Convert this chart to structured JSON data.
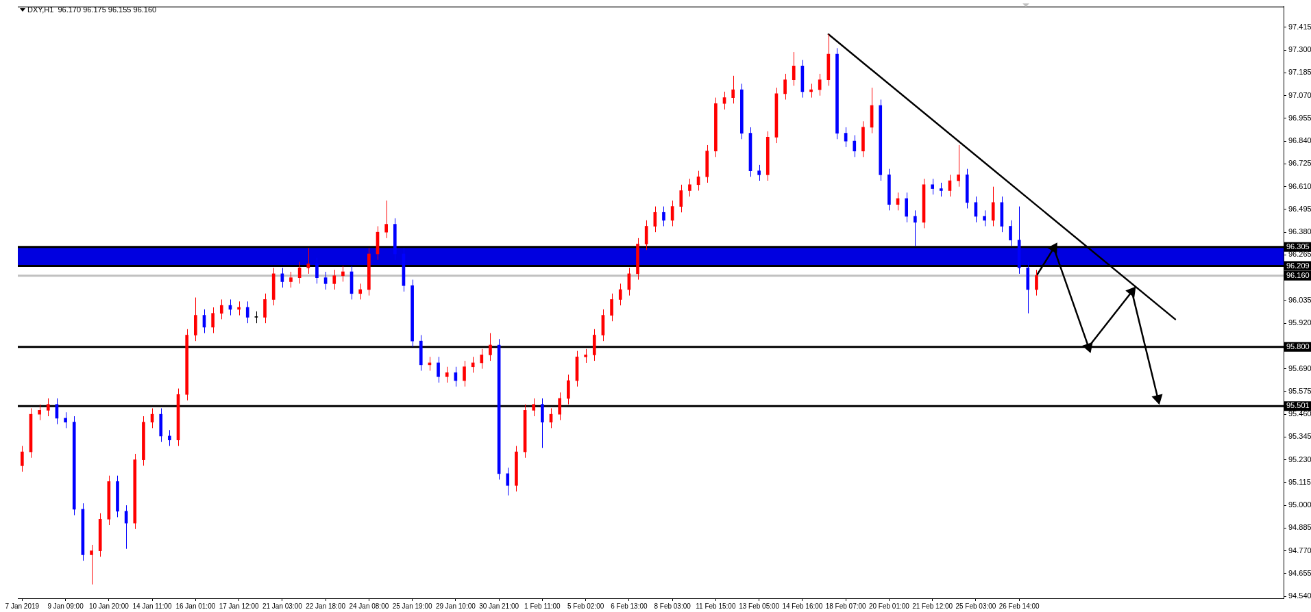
{
  "chart_data": {
    "type": "candlestick",
    "title": "DXY,H1  96.170 96.175 96.155 96.160",
    "categories": [
      "7 Jan 2019",
      null,
      null,
      null,
      null,
      "9 Jan 09:00",
      null,
      null,
      null,
      null,
      "10 Jan 20:00",
      null,
      null,
      null,
      null,
      "14 Jan 11:00",
      null,
      null,
      null,
      null,
      "16 Jan 01:00",
      null,
      null,
      null,
      null,
      "17 Jan 12:00",
      null,
      null,
      null,
      null,
      "21 Jan 03:00",
      null,
      null,
      null,
      null,
      "22 Jan 18:00",
      null,
      null,
      null,
      null,
      "24 Jan 08:00",
      null,
      null,
      null,
      null,
      "25 Jan 19:00",
      null,
      null,
      null,
      null,
      "29 Jan 10:00",
      null,
      null,
      null,
      null,
      "30 Jan 21:00",
      null,
      null,
      null,
      null,
      "1 Feb 11:00",
      null,
      null,
      null,
      null,
      "5 Feb 02:00",
      null,
      null,
      null,
      null,
      "6 Feb 13:00",
      null,
      null,
      null,
      null,
      "8 Feb 03:00",
      null,
      null,
      null,
      null,
      "11 Feb 15:00",
      null,
      null,
      null,
      null,
      "13 Feb 05:00",
      null,
      null,
      null,
      null,
      "14 Feb 16:00",
      null,
      null,
      null,
      null,
      "18 Feb 07:00",
      null,
      null,
      null,
      null,
      "20 Feb 01:00",
      null,
      null,
      null,
      null,
      "21 Feb 12:00",
      null,
      null,
      null,
      null,
      "25 Feb 03:00",
      null,
      null,
      null,
      null,
      "26 Feb 14:00",
      null,
      null,
      null,
      null,
      null,
      null,
      null,
      null,
      null,
      null,
      null,
      null,
      null,
      null,
      null,
      null,
      null,
      null,
      null,
      null,
      null,
      null,
      null,
      null,
      null,
      null,
      null,
      null,
      null,
      null
    ],
    "ohlc": [
      [
        95.2,
        95.3,
        95.17,
        95.27
      ],
      [
        95.27,
        95.49,
        95.24,
        95.46
      ],
      [
        95.46,
        95.51,
        95.43,
        95.48
      ],
      [
        95.48,
        95.54,
        95.45,
        95.51
      ],
      [
        95.51,
        95.54,
        95.41,
        95.44
      ],
      [
        95.44,
        95.47,
        95.39,
        95.42
      ],
      [
        95.42,
        95.45,
        94.95,
        94.98
      ],
      [
        94.98,
        95.01,
        94.72,
        94.75
      ],
      [
        94.75,
        94.8,
        94.6,
        94.77
      ],
      [
        94.77,
        94.96,
        94.74,
        94.93
      ],
      [
        94.93,
        95.15,
        94.9,
        95.12
      ],
      [
        95.12,
        95.15,
        94.94,
        94.97
      ],
      [
        94.97,
        95.0,
        94.78,
        94.91
      ],
      [
        94.91,
        95.26,
        94.88,
        95.23
      ],
      [
        95.23,
        95.45,
        95.2,
        95.42
      ],
      [
        95.42,
        95.49,
        95.39,
        95.46
      ],
      [
        95.46,
        95.49,
        95.32,
        95.35
      ],
      [
        95.35,
        95.38,
        95.3,
        95.33
      ],
      [
        95.33,
        95.59,
        95.3,
        95.56
      ],
      [
        95.56,
        95.89,
        95.53,
        95.86
      ],
      [
        95.86,
        96.05,
        95.83,
        95.96
      ],
      [
        95.96,
        95.99,
        95.87,
        95.9
      ],
      [
        95.9,
        96.0,
        95.87,
        95.97
      ],
      [
        95.97,
        96.04,
        95.94,
        96.01
      ],
      [
        96.01,
        96.04,
        95.96,
        95.99
      ],
      [
        95.99,
        96.03,
        95.96,
        96.0
      ],
      [
        96.0,
        96.03,
        95.92,
        95.95
      ],
      [
        95.95,
        95.98,
        95.92,
        95.95
      ],
      [
        95.95,
        96.07,
        95.92,
        96.04
      ],
      [
        96.04,
        96.2,
        96.01,
        96.17
      ],
      [
        96.17,
        96.2,
        96.1,
        96.13
      ],
      [
        96.13,
        96.18,
        96.1,
        96.15
      ],
      [
        96.15,
        96.23,
        96.12,
        96.2
      ],
      [
        96.2,
        96.3,
        96.17,
        96.22
      ],
      [
        96.22,
        96.25,
        96.12,
        96.15
      ],
      [
        96.15,
        96.18,
        96.09,
        96.12
      ],
      [
        96.12,
        96.19,
        96.09,
        96.16
      ],
      [
        96.16,
        96.21,
        96.13,
        96.18
      ],
      [
        96.18,
        96.21,
        96.04,
        96.07
      ],
      [
        96.07,
        96.12,
        96.04,
        96.09
      ],
      [
        96.09,
        96.3,
        96.06,
        96.27
      ],
      [
        96.27,
        96.41,
        96.24,
        96.38
      ],
      [
        96.38,
        96.54,
        96.35,
        96.42
      ],
      [
        96.42,
        96.45,
        96.24,
        96.27
      ],
      [
        96.27,
        96.3,
        96.08,
        96.11
      ],
      [
        96.11,
        96.14,
        95.8,
        95.83
      ],
      [
        95.83,
        95.86,
        95.68,
        95.71
      ],
      [
        95.71,
        95.75,
        95.68,
        95.72
      ],
      [
        95.72,
        95.75,
        95.62,
        95.65
      ],
      [
        95.65,
        95.7,
        95.62,
        95.67
      ],
      [
        95.67,
        95.7,
        95.6,
        95.63
      ],
      [
        95.63,
        95.73,
        95.6,
        95.7
      ],
      [
        95.7,
        95.75,
        95.67,
        95.72
      ],
      [
        95.72,
        95.79,
        95.69,
        95.76
      ],
      [
        95.76,
        95.87,
        95.73,
        95.81
      ],
      [
        95.81,
        95.84,
        95.13,
        95.16
      ],
      [
        95.16,
        95.19,
        95.05,
        95.1
      ],
      [
        95.1,
        95.3,
        95.07,
        95.27
      ],
      [
        95.27,
        95.51,
        95.24,
        95.48
      ],
      [
        95.48,
        95.54,
        95.45,
        95.51
      ],
      [
        95.51,
        95.54,
        95.29,
        95.42
      ],
      [
        95.42,
        95.49,
        95.39,
        95.46
      ],
      [
        95.46,
        95.57,
        95.43,
        95.54
      ],
      [
        95.54,
        95.66,
        95.51,
        95.63
      ],
      [
        95.63,
        95.78,
        95.6,
        95.75
      ],
      [
        95.75,
        95.79,
        95.72,
        95.76
      ],
      [
        95.76,
        95.89,
        95.73,
        95.86
      ],
      [
        95.86,
        95.99,
        95.83,
        95.96
      ],
      [
        95.96,
        96.07,
        95.93,
        96.04
      ],
      [
        96.04,
        96.12,
        96.01,
        96.09
      ],
      [
        96.09,
        96.2,
        96.06,
        96.17
      ],
      [
        96.17,
        96.35,
        96.14,
        96.32
      ],
      [
        96.32,
        96.44,
        96.29,
        96.41
      ],
      [
        96.41,
        96.51,
        96.38,
        96.48
      ],
      [
        96.48,
        96.51,
        96.41,
        96.44
      ],
      [
        96.44,
        96.54,
        96.41,
        96.51
      ],
      [
        96.51,
        96.62,
        96.48,
        96.59
      ],
      [
        96.59,
        96.65,
        96.56,
        96.62
      ],
      [
        96.62,
        96.69,
        96.59,
        96.66
      ],
      [
        96.66,
        96.82,
        96.63,
        96.79
      ],
      [
        96.79,
        97.06,
        96.76,
        97.03
      ],
      [
        97.03,
        97.09,
        97.0,
        97.06
      ],
      [
        97.06,
        97.17,
        97.03,
        97.1
      ],
      [
        97.1,
        97.13,
        96.85,
        96.88
      ],
      [
        96.88,
        96.91,
        96.66,
        96.69
      ],
      [
        96.69,
        96.72,
        96.64,
        96.67
      ],
      [
        96.67,
        96.89,
        96.64,
        96.86
      ],
      [
        96.86,
        97.11,
        96.83,
        97.08
      ],
      [
        97.08,
        97.18,
        97.05,
        97.15
      ],
      [
        97.15,
        97.29,
        97.12,
        97.22
      ],
      [
        97.22,
        97.25,
        97.06,
        97.09
      ],
      [
        97.09,
        97.13,
        97.06,
        97.1
      ],
      [
        97.1,
        97.18,
        97.07,
        97.15
      ],
      [
        97.15,
        97.38,
        97.12,
        97.28
      ],
      [
        97.28,
        97.31,
        96.85,
        96.88
      ],
      [
        96.88,
        96.91,
        96.81,
        96.84
      ],
      [
        96.84,
        96.87,
        96.76,
        96.79
      ],
      [
        96.79,
        96.94,
        96.76,
        96.91
      ],
      [
        96.91,
        97.11,
        96.88,
        97.02
      ],
      [
        97.02,
        97.05,
        96.64,
        96.67
      ],
      [
        96.67,
        96.7,
        96.49,
        96.52
      ],
      [
        96.52,
        96.58,
        96.49,
        96.55
      ],
      [
        96.55,
        96.58,
        96.43,
        96.46
      ],
      [
        96.46,
        96.49,
        96.31,
        96.43
      ],
      [
        96.43,
        96.65,
        96.4,
        96.62
      ],
      [
        96.62,
        96.65,
        96.57,
        96.6
      ],
      [
        96.6,
        96.63,
        96.56,
        96.59
      ],
      [
        96.59,
        96.67,
        96.56,
        96.64
      ],
      [
        96.64,
        96.82,
        96.61,
        96.67
      ],
      [
        96.67,
        96.7,
        96.5,
        96.53
      ],
      [
        96.53,
        96.56,
        96.43,
        96.46
      ],
      [
        96.46,
        96.49,
        96.41,
        96.44
      ],
      [
        96.44,
        96.61,
        96.41,
        96.53
      ],
      [
        96.53,
        96.56,
        96.38,
        96.41
      ],
      [
        96.41,
        96.44,
        96.31,
        96.34
      ],
      [
        96.34,
        96.51,
        96.17,
        96.2
      ],
      [
        96.2,
        96.23,
        95.97,
        96.09
      ],
      [
        96.09,
        96.19,
        96.06,
        96.16
      ],
      null,
      null,
      null,
      null,
      null,
      null,
      null,
      null,
      null,
      null,
      null,
      null,
      null,
      null,
      null,
      null,
      null,
      null,
      null,
      null,
      null,
      null,
      null,
      null,
      null,
      null,
      null,
      null
    ],
    "colors": [
      "#ff0000",
      "#ff0000",
      "#ff0000",
      "#ff0000",
      "#0000ff",
      "#0000ff",
      "#0000ff",
      "#0000ff",
      "#ff0000",
      "#ff0000",
      "#ff0000",
      "#0000ff",
      "#0000ff",
      "#ff0000",
      "#ff0000",
      "#ff0000",
      "#0000ff",
      "#0000ff",
      "#ff0000",
      "#ff0000",
      "#ff0000",
      "#0000ff",
      "#ff0000",
      "#ff0000",
      "#0000ff",
      "#ff0000",
      "#0000ff",
      "#000000",
      "#ff0000",
      "#ff0000",
      "#0000ff",
      "#ff0000",
      "#ff0000",
      "#ff0000",
      "#0000ff",
      "#0000ff",
      "#ff0000",
      "#ff0000",
      "#0000ff",
      "#ff0000",
      "#ff0000",
      "#ff0000",
      "#ff0000",
      "#0000ff",
      "#0000ff",
      "#0000ff",
      "#0000ff",
      "#ff0000",
      "#0000ff",
      "#ff0000",
      "#0000ff",
      "#ff0000",
      "#ff0000",
      "#ff0000",
      "#ff0000",
      "#0000ff",
      "#0000ff",
      "#ff0000",
      "#ff0000",
      "#ff0000",
      "#0000ff",
      "#ff0000",
      "#ff0000",
      "#ff0000",
      "#ff0000",
      "#ff0000",
      "#ff0000",
      "#ff0000",
      "#ff0000",
      "#ff0000",
      "#ff0000",
      "#ff0000",
      "#ff0000",
      "#ff0000",
      "#0000ff",
      "#ff0000",
      "#ff0000",
      "#ff0000",
      "#ff0000",
      "#ff0000",
      "#ff0000",
      "#ff0000",
      "#ff0000",
      "#0000ff",
      "#0000ff",
      "#0000ff",
      "#ff0000",
      "#ff0000",
      "#ff0000",
      "#ff0000",
      "#0000ff",
      "#ff0000",
      "#ff0000",
      "#ff0000",
      "#0000ff",
      "#0000ff",
      "#0000ff",
      "#ff0000",
      "#ff0000",
      "#0000ff",
      "#0000ff",
      "#ff0000",
      "#0000ff",
      "#0000ff",
      "#ff0000",
      "#0000ff",
      "#0000ff",
      "#ff0000",
      "#ff0000",
      "#0000ff",
      "#0000ff",
      "#0000ff",
      "#ff0000",
      "#0000ff",
      "#0000ff",
      "#0000ff",
      "#0000ff",
      "#ff0000",
      null,
      null,
      null,
      null,
      null,
      null,
      null,
      null,
      null,
      null,
      null,
      null,
      null,
      null,
      null,
      null,
      null,
      null,
      null,
      null,
      null,
      null,
      null,
      null,
      null,
      null,
      null,
      null
    ],
    "series": [
      {
        "type": "line",
        "color": "#000000",
        "values": [
          null,
          null,
          null,
          null,
          null,
          null,
          null,
          null,
          null,
          null,
          null,
          null,
          null,
          null,
          null,
          null,
          null,
          null,
          null,
          null,
          null,
          null,
          null,
          null,
          null,
          null,
          null,
          null,
          null,
          null,
          null,
          null,
          null,
          null,
          null,
          null,
          null,
          null,
          null,
          null,
          null,
          null,
          null,
          null,
          null,
          null,
          null,
          null,
          null,
          null,
          null,
          null,
          null,
          null,
          null,
          null,
          null,
          null,
          null,
          null,
          null,
          null,
          null,
          null,
          null,
          null,
          null,
          null,
          null,
          null,
          null,
          null,
          null,
          null,
          null,
          null,
          null,
          null,
          null,
          null,
          null,
          null,
          null,
          null,
          null,
          null,
          null,
          null,
          null,
          null,
          null,
          null,
          null,
          97.38,
          null,
          null,
          null,
          null,
          null,
          null,
          null,
          null,
          null,
          null,
          null,
          null,
          null,
          null,
          null,
          null,
          null,
          null,
          null,
          null,
          null,
          null,
          null,
          null,
          null,
          null,
          null,
          null,
          null,
          null,
          null,
          null,
          null,
          null,
          null,
          null,
          null,
          null,
          null,
          95.94,
          null,
          null,
          null,
          null,
          null,
          null,
          null,
          null,
          null,
          null,
          null,
          null
        ]
      },
      {
        "type": "line",
        "color": "#000000",
        "marker": "triangle",
        "values": [
          null,
          null,
          null,
          null,
          null,
          null,
          null,
          null,
          null,
          null,
          null,
          null,
          null,
          null,
          null,
          null,
          null,
          null,
          null,
          null,
          null,
          null,
          null,
          null,
          null,
          null,
          null,
          null,
          null,
          null,
          null,
          null,
          null,
          null,
          null,
          null,
          null,
          null,
          null,
          null,
          null,
          null,
          null,
          null,
          null,
          null,
          null,
          null,
          null,
          null,
          null,
          null,
          null,
          null,
          null,
          null,
          null,
          null,
          null,
          null,
          null,
          null,
          null,
          null,
          null,
          null,
          null,
          null,
          null,
          null,
          null,
          null,
          null,
          null,
          null,
          null,
          null,
          null,
          null,
          null,
          null,
          null,
          null,
          null,
          null,
          null,
          null,
          null,
          null,
          null,
          null,
          null,
          null,
          null,
          null,
          null,
          null,
          null,
          null,
          null,
          null,
          null,
          null,
          null,
          null,
          null,
          null,
          null,
          null,
          null,
          null,
          null,
          null,
          null,
          null,
          null,
          null,
          96.16,
          null,
          96.3,
          null,
          null,
          null,
          95.8,
          null,
          null,
          null,
          null,
          96.08,
          null,
          null,
          95.54,
          null,
          null,
          null,
          null,
          null,
          null,
          null,
          null,
          null,
          null,
          null,
          null,
          null,
          null
        ]
      }
    ],
    "ylim": [
      94.53,
      97.52
    ],
    "yticks": [
      {
        "value": 94.54,
        "label": "94.540"
      },
      {
        "value": 94.655,
        "label": "94.655"
      },
      {
        "value": 94.77,
        "label": "94.770"
      },
      {
        "value": 94.885,
        "label": "94.885"
      },
      {
        "value": 95.0,
        "label": "95.000"
      },
      {
        "value": 95.115,
        "label": "95.115"
      },
      {
        "value": 95.23,
        "label": "95.230"
      },
      {
        "value": 95.345,
        "label": "95.345"
      },
      {
        "value": 95.46,
        "label": "95.460"
      },
      {
        "value": 95.575,
        "label": "95.575"
      },
      {
        "value": 95.69,
        "label": "95.690"
      },
      {
        "value": 95.92,
        "label": "95.920"
      },
      {
        "value": 96.035,
        "label": "96.035"
      },
      {
        "value": 96.265,
        "label": "96.265"
      },
      {
        "value": 96.38,
        "label": "96.380"
      },
      {
        "value": 96.495,
        "label": "96.495"
      },
      {
        "value": 96.61,
        "label": "96.610"
      },
      {
        "value": 96.725,
        "label": "96.725"
      },
      {
        "value": 96.84,
        "label": "96.840"
      },
      {
        "value": 96.955,
        "label": "96.955"
      },
      {
        "value": 97.07,
        "label": "97.070"
      },
      {
        "value": 97.185,
        "label": "97.185"
      },
      {
        "value": 97.3,
        "label": "97.300"
      },
      {
        "value": 97.415,
        "label": "97.415"
      }
    ],
    "bands": [
      {
        "axis": "y",
        "from": 96.209,
        "to": 96.305,
        "color": "#0000e0"
      }
    ],
    "ref_lines": [
      {
        "axis": "y",
        "value": 96.305,
        "label": "96.305",
        "color": "#000000"
      },
      {
        "axis": "y",
        "value": 96.209,
        "label": "96.209",
        "color": "#000000"
      },
      {
        "axis": "y",
        "value": 96.16,
        "label": "96.160",
        "color": "#c0c0c0"
      },
      {
        "axis": "y",
        "value": 95.8,
        "label": "95.800",
        "color": "#000000"
      },
      {
        "axis": "y",
        "value": 95.501,
        "label": "95.501",
        "color": "#000000"
      }
    ]
  }
}
